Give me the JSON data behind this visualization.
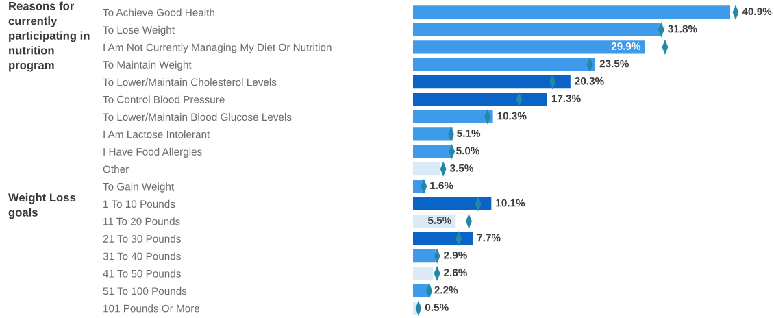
{
  "chart_data": [
    {
      "type": "bar",
      "orientation": "horizontal",
      "title": "Reasons for currently participating in nutrition program",
      "tick_labels": "y",
      "categories": [
        "To Achieve Good Health",
        "To Lose Weight",
        "I Am Not Currently Managing My Diet Or Nutrition",
        "To Maintain Weight",
        "To Lower/Maintain Cholesterol Levels",
        "To Control Blood Pressure",
        "To Lower/Maintain Blood Glucose Levels",
        "I Am Lactose Intolerant",
        "I Have Food Allergies",
        "Other",
        "To Gain Weight"
      ],
      "series": [
        {
          "type": "bar",
          "values": [
            40.9,
            31.8,
            29.9,
            23.5,
            20.3,
            17.3,
            10.3,
            5.1,
            5.0,
            3.5,
            1.6
          ],
          "colors": [
            "#3d9be9",
            "#3d9be9",
            "#3d9be9",
            "#3d9be9",
            "#0a64c8",
            "#0a64c8",
            "#3d9be9",
            "#3d9be9",
            "#3d9be9",
            "#dbeaf7",
            "#3d9be9"
          ],
          "value_labels": [
            "40.9%",
            "31.8%",
            "29.9%",
            "23.5%",
            "20.3%",
            "17.3%",
            "10.3%",
            "5.1%",
            "5.0%",
            "3.5%",
            "1.6%"
          ]
        },
        {
          "type": "scatter",
          "color": "#2487a8",
          "x": [
            "To Achieve Good Health",
            "To Lose Weight",
            "I Am Not Currently Managing My Diet Or Nutrition",
            "To Maintain Weight",
            "To Lower/Maintain Cholesterol Levels",
            "To Control Blood Pressure",
            "To Lower/Maintain Blood Glucose Levels",
            "I Am Lactose Intolerant",
            "I Have Food Allergies",
            "Other",
            "To Gain Weight"
          ],
          "values": [
            41.6,
            32.0,
            32.5,
            22.8,
            18.0,
            13.7,
            9.6,
            4.9,
            5.0,
            3.9,
            1.4
          ]
        }
      ]
    },
    {
      "type": "bar",
      "orientation": "horizontal",
      "title": "Weight Loss goals",
      "tick_labels": "y",
      "categories": [
        "1 To 10 Pounds",
        "11 To 20 Pounds",
        "21 To 30 Pounds",
        "31 To 40 Pounds",
        "41 To 50 Pounds",
        "51 To 100 Pounds",
        "101 Pounds Or More"
      ],
      "series": [
        {
          "type": "bar",
          "values": [
            10.1,
            5.5,
            7.7,
            2.9,
            2.6,
            2.2,
            0.5
          ],
          "colors": [
            "#0a64c8",
            "#dbeaf7",
            "#0a64c8",
            "#3d9be9",
            "#dbeaf7",
            "#3d9be9",
            "#dbeaf7"
          ],
          "value_labels": [
            "10.1%",
            "5.5%",
            "7.7%",
            "2.9%",
            "2.6%",
            "2.2%",
            "0.5%"
          ]
        },
        {
          "type": "scatter",
          "color": "#2487a8",
          "x": [
            "1 To 10 Pounds",
            "11 To 20 Pounds",
            "21 To 30 Pounds",
            "31 To 40 Pounds",
            "41 To 50 Pounds",
            "51 To 100 Pounds",
            "101 Pounds Or More"
          ],
          "values": [
            8.4,
            7.2,
            5.9,
            3.1,
            3.1,
            2.1,
            0.7
          ]
        }
      ]
    }
  ]
}
